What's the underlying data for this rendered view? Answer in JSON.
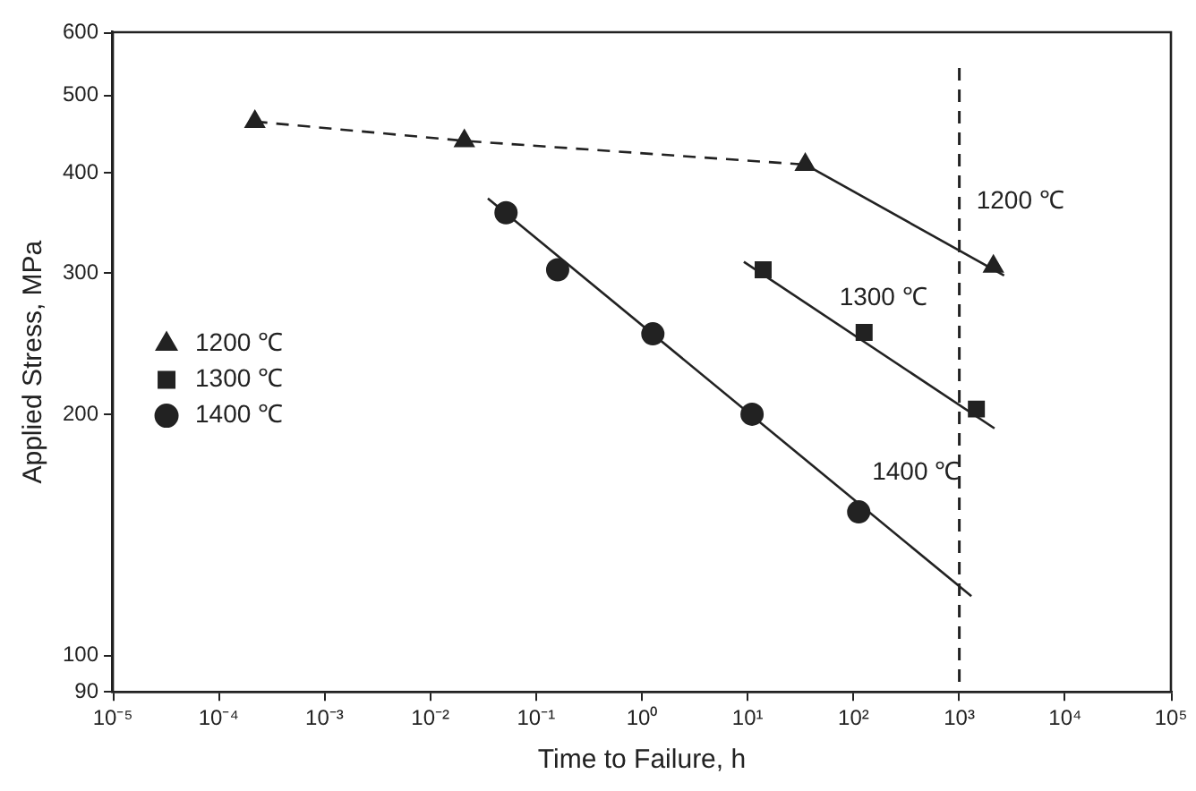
{
  "chart_data": {
    "type": "scatter",
    "xlabel": "Time to Failure, h",
    "ylabel": "Applied Stress, MPa",
    "log": "xy",
    "grid": false,
    "legend": "center left",
    "xlim": [
      1e-05,
      100000
    ],
    "xticks": [
      {
        "value": 1e-05,
        "label": "10⁻⁵"
      },
      {
        "value": 0.0001,
        "label": "10⁻⁴"
      },
      {
        "value": 0.001,
        "label": "10⁻³"
      },
      {
        "value": 0.01,
        "label": "10⁻²"
      },
      {
        "value": 0.1,
        "label": "10⁻¹"
      },
      {
        "value": 1,
        "label": "10⁰"
      },
      {
        "value": 10,
        "label": "10¹"
      },
      {
        "value": 100,
        "label": "10²"
      },
      {
        "value": 1000,
        "label": "10³"
      },
      {
        "value": 10000,
        "label": "10⁴"
      },
      {
        "value": 100000,
        "label": "10⁵"
      }
    ],
    "ylim": [
      90,
      600
    ],
    "yticks": [
      90,
      100,
      200,
      300,
      400,
      500,
      600
    ],
    "series": [
      {
        "name": "1200 ℃",
        "color": "#222222",
        "marker": "triangle",
        "x": [
          0.00022,
          0.021,
          35,
          2100
        ],
        "values": [
          464,
          439,
          410,
          306
        ]
      },
      {
        "name": "1300 ℃",
        "color": "#222222",
        "marker": "square",
        "x": [
          14,
          126,
          1450
        ],
        "values": [
          303,
          253,
          203
        ]
      },
      {
        "name": "1400 ℃",
        "color": "#222222",
        "marker": "circle",
        "x": [
          0.052,
          0.16,
          1.27,
          11,
          112
        ],
        "values": [
          357,
          303,
          252,
          200,
          151
        ]
      },
      {
        "type": "line",
        "color": "#222222",
        "line_style": "dashed",
        "marker": "none",
        "x": [
          0.00022,
          0.021,
          35
        ],
        "values": [
          464,
          439,
          410
        ]
      },
      {
        "type": "line",
        "color": "#222222",
        "line_style": "solid",
        "marker": "none",
        "x": [
          35,
          2650
        ],
        "values": [
          410,
          298
        ]
      },
      {
        "type": "line",
        "color": "#222222",
        "line_style": "solid",
        "marker": "none",
        "x": [
          9.2,
          2150
        ],
        "values": [
          310,
          192
        ]
      },
      {
        "type": "line",
        "color": "#222222",
        "line_style": "solid",
        "marker": "none",
        "x": [
          0.035,
          1300
        ],
        "values": [
          372,
          118.5
        ]
      }
    ],
    "ref_lines": [
      {
        "axis": "x",
        "value": 1000,
        "color": "#222222",
        "line_style": "dashed"
      }
    ],
    "annotations": [
      "1200 ℃",
      "1300 ℃",
      "1400 ℃"
    ]
  }
}
